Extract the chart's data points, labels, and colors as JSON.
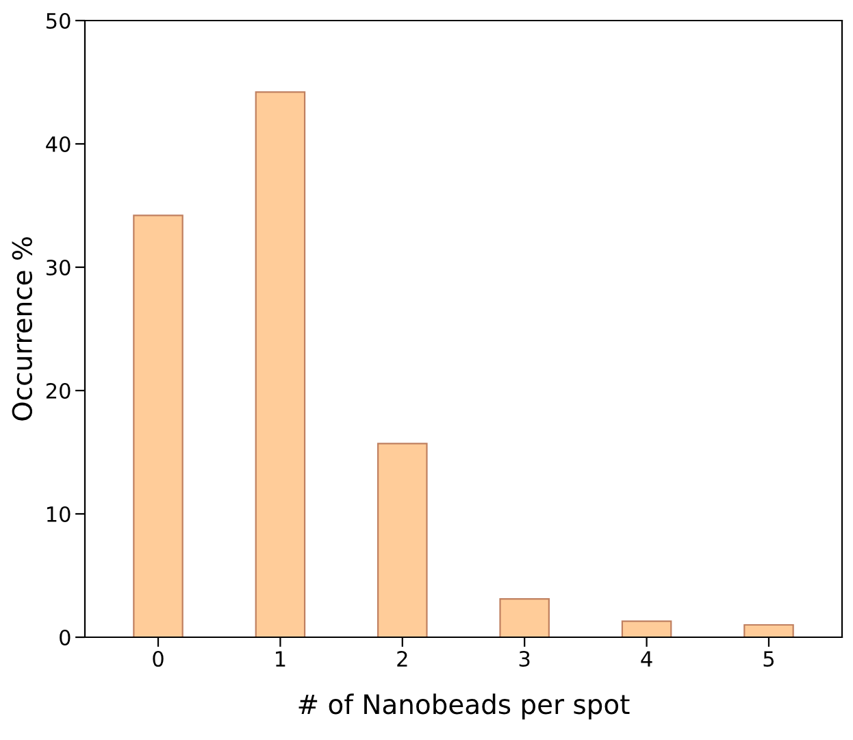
{
  "chart_data": {
    "type": "bar",
    "xlabel": "# of Nanobeads per spot",
    "ylabel": "Occurrence %",
    "categories": [
      "0",
      "1",
      "2",
      "3",
      "4",
      "5"
    ],
    "values": [
      34.2,
      44.2,
      15.7,
      3.1,
      1.3,
      1.0
    ],
    "color": "#ffcc99",
    "ylim": [
      0,
      50
    ],
    "yticks": [
      0,
      10,
      20,
      30,
      40,
      50
    ],
    "grid": false,
    "legend": false
  }
}
